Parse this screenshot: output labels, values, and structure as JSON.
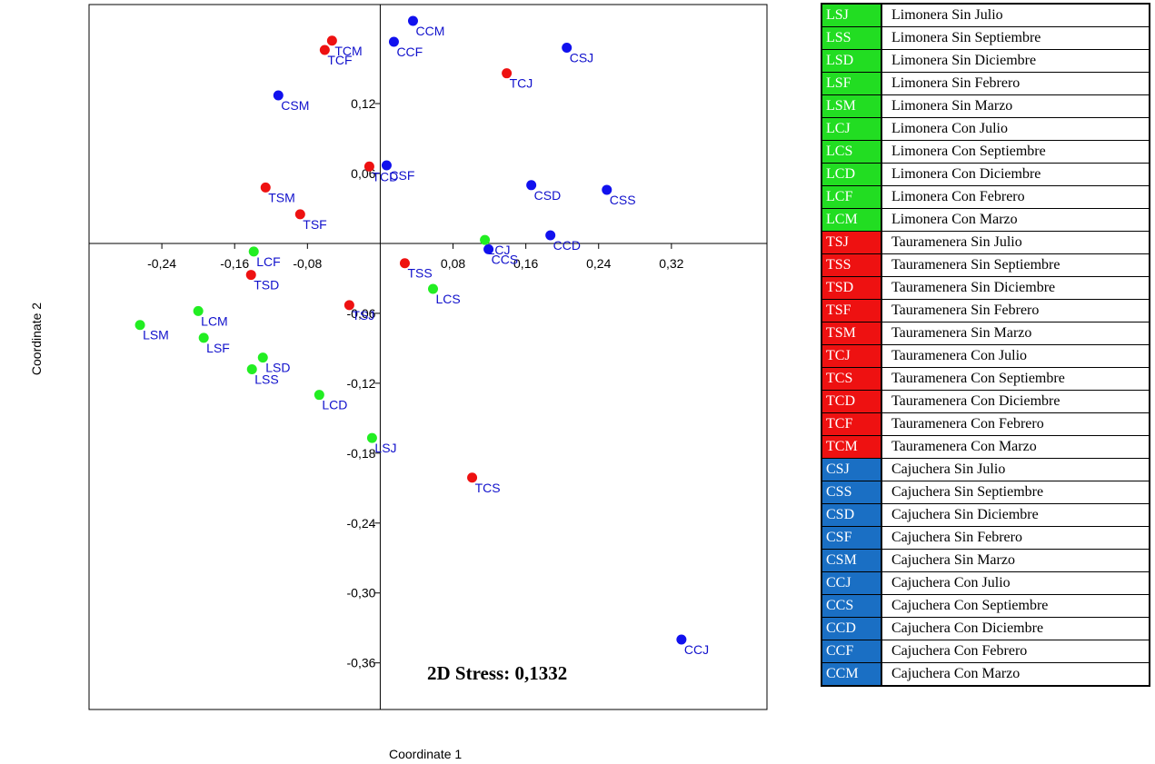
{
  "chart_data": {
    "type": "scatter",
    "xlabel": "Coordinate 1",
    "ylabel": "Coordinate 2",
    "xlim": [
      -0.32,
      0.425
    ],
    "ylim": [
      -0.4,
      0.205
    ],
    "x_ticks": [
      -0.24,
      -0.16,
      -0.08,
      0.08,
      0.16,
      0.24,
      0.32
    ],
    "y_ticks": [
      0.12,
      0.06,
      -0.06,
      -0.12,
      -0.18,
      -0.24,
      -0.3,
      -0.36
    ],
    "x_tick_labels": [
      "-0,24",
      "-0,16",
      "-0,08",
      "0,08",
      "0,16",
      "0,24",
      "0,32"
    ],
    "y_tick_labels": [
      "0,12",
      "0,06",
      "-0,06",
      "-0,12",
      "-0,18",
      "-0,24",
      "-0,30",
      "-0,36"
    ],
    "annotation": "2D Stress: 0,1332",
    "colors": {
      "L": "#22ee22",
      "T": "#ee1111",
      "C": "#1111ee"
    },
    "legend_colors": {
      "L": "#22dd22",
      "T": "#ee1111",
      "C": "#1a6fc4"
    },
    "points": [
      {
        "label": "LSJ",
        "group": "L",
        "x": -0.009,
        "y": -0.167
      },
      {
        "label": "LSS",
        "group": "L",
        "x": -0.141,
        "y": -0.108
      },
      {
        "label": "LSD",
        "group": "L",
        "x": -0.129,
        "y": -0.098
      },
      {
        "label": "LSF",
        "group": "L",
        "x": -0.194,
        "y": -0.081
      },
      {
        "label": "LSM",
        "group": "L",
        "x": -0.264,
        "y": -0.07
      },
      {
        "label": "LCJ",
        "group": "L",
        "x": 0.115,
        "y": 0.003
      },
      {
        "label": "LCS",
        "group": "L",
        "x": 0.058,
        "y": -0.039
      },
      {
        "label": "LCD",
        "group": "L",
        "x": -0.067,
        "y": -0.13
      },
      {
        "label": "LCF",
        "group": "L",
        "x": -0.139,
        "y": -0.007
      },
      {
        "label": "LCM",
        "group": "L",
        "x": -0.2,
        "y": -0.058
      },
      {
        "label": "TSJ",
        "group": "T",
        "x": -0.034,
        "y": -0.053
      },
      {
        "label": "TSS",
        "group": "T",
        "x": 0.027,
        "y": -0.017
      },
      {
        "label": "TSD",
        "group": "T",
        "x": -0.142,
        "y": -0.027
      },
      {
        "label": "TSF",
        "group": "T",
        "x": -0.088,
        "y": 0.025
      },
      {
        "label": "TSM",
        "group": "T",
        "x": -0.126,
        "y": 0.048
      },
      {
        "label": "TCJ",
        "group": "T",
        "x": 0.139,
        "y": 0.146
      },
      {
        "label": "TCS",
        "group": "T",
        "x": 0.101,
        "y": -0.201
      },
      {
        "label": "TCD",
        "group": "T",
        "x": -0.012,
        "y": 0.066
      },
      {
        "label": "TCF",
        "group": "T",
        "x": -0.061,
        "y": 0.166
      },
      {
        "label": "TCM",
        "group": "T",
        "x": -0.053,
        "y": 0.174
      },
      {
        "label": "CSJ",
        "group": "C",
        "x": 0.205,
        "y": 0.168
      },
      {
        "label": "CSS",
        "group": "C",
        "x": 0.249,
        "y": 0.046
      },
      {
        "label": "CSD",
        "group": "C",
        "x": 0.166,
        "y": 0.05
      },
      {
        "label": "CSF",
        "group": "C",
        "x": 0.007,
        "y": 0.067
      },
      {
        "label": "CSM",
        "group": "C",
        "x": -0.112,
        "y": 0.127
      },
      {
        "label": "CCJ",
        "group": "C",
        "x": 0.331,
        "y": -0.34
      },
      {
        "label": "CCS",
        "group": "C",
        "x": 0.119,
        "y": -0.005
      },
      {
        "label": "CCD",
        "group": "C",
        "x": 0.187,
        "y": 0.007
      },
      {
        "label": "CCF",
        "group": "C",
        "x": 0.015,
        "y": 0.173
      },
      {
        "label": "CCM",
        "group": "C",
        "x": 0.036,
        "y": 0.191
      }
    ]
  },
  "legend": [
    {
      "code": "LSJ",
      "group": "L",
      "desc": "Limonera Sin Julio"
    },
    {
      "code": "LSS",
      "group": "L",
      "desc": "Limonera Sin Septiembre"
    },
    {
      "code": "LSD",
      "group": "L",
      "desc": "Limonera Sin Diciembre"
    },
    {
      "code": "LSF",
      "group": "L",
      "desc": "Limonera Sin Febrero"
    },
    {
      "code": "LSM",
      "group": "L",
      "desc": "Limonera Sin Marzo"
    },
    {
      "code": "LCJ",
      "group": "L",
      "desc": "Limonera Con Julio"
    },
    {
      "code": "LCS",
      "group": "L",
      "desc": "Limonera Con Septiembre"
    },
    {
      "code": "LCD",
      "group": "L",
      "desc": "Limonera Con Diciembre"
    },
    {
      "code": "LCF",
      "group": "L",
      "desc": "Limonera Con Febrero"
    },
    {
      "code": "LCM",
      "group": "L",
      "desc": "Limonera Con Marzo"
    },
    {
      "code": "TSJ",
      "group": "T",
      "desc": "Tauramenera Sin Julio"
    },
    {
      "code": "TSS",
      "group": "T",
      "desc": "Tauramenera Sin Septiembre"
    },
    {
      "code": "TSD",
      "group": "T",
      "desc": "Tauramenera Sin Diciembre"
    },
    {
      "code": "TSF",
      "group": "T",
      "desc": "Tauramenera Sin Febrero"
    },
    {
      "code": "TSM",
      "group": "T",
      "desc": "Tauramenera Sin Marzo"
    },
    {
      "code": "TCJ",
      "group": "T",
      "desc": "Tauramenera Con Julio"
    },
    {
      "code": "TCS",
      "group": "T",
      "desc": "Tauramenera Con Septiembre"
    },
    {
      "code": "TCD",
      "group": "T",
      "desc": "Tauramenera Con Diciembre"
    },
    {
      "code": "TCF",
      "group": "T",
      "desc": "Tauramenera Con Febrero"
    },
    {
      "code": "TCM",
      "group": "T",
      "desc": "Tauramenera Con Marzo"
    },
    {
      "code": "CSJ",
      "group": "C",
      "desc": "Cajuchera Sin Julio"
    },
    {
      "code": "CSS",
      "group": "C",
      "desc": "Cajuchera Sin Septiembre"
    },
    {
      "code": "CSD",
      "group": "C",
      "desc": "Cajuchera Sin Diciembre"
    },
    {
      "code": "CSF",
      "group": "C",
      "desc": "Cajuchera Sin Febrero"
    },
    {
      "code": "CSM",
      "group": "C",
      "desc": "Cajuchera Sin Marzo"
    },
    {
      "code": "CCJ",
      "group": "C",
      "desc": "Cajuchera Con Julio"
    },
    {
      "code": "CCS",
      "group": "C",
      "desc": "Cajuchera Con Septiembre"
    },
    {
      "code": "CCD",
      "group": "C",
      "desc": "Cajuchera Con Diciembre"
    },
    {
      "code": "CCF",
      "group": "C",
      "desc": "Cajuchera Con Febrero"
    },
    {
      "code": "CCM",
      "group": "C",
      "desc": "Cajuchera Con Marzo"
    }
  ]
}
